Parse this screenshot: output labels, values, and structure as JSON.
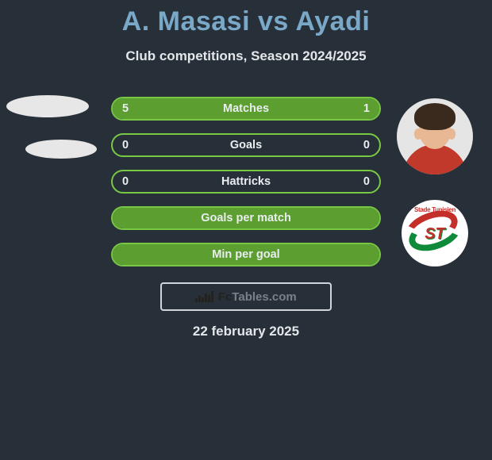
{
  "title_color": "#7aa8c8",
  "title": "A. Masasi vs Ayadi",
  "subtitle": "Club competitions, Season 2024/2025",
  "date": "22 february 2025",
  "brand": {
    "prefix": "Fc",
    "suffix": "Tables",
    "tld": ".com"
  },
  "background_color": "#273038",
  "border_color": "#79c845",
  "fill_color": "#5d9e31",
  "player_left": {
    "name": "A. Masasi"
  },
  "player_right": {
    "name": "Ayadi",
    "club_script": "Stade Tunisien",
    "club_initials": "ST"
  },
  "rows": [
    {
      "label": "Matches",
      "left_val": "5",
      "right_val": "1",
      "left_pct": 83,
      "right_pct": 17
    },
    {
      "label": "Goals",
      "left_val": "0",
      "right_val": "0",
      "left_pct": 0,
      "right_pct": 0
    },
    {
      "label": "Hattricks",
      "left_val": "0",
      "right_val": "0",
      "left_pct": 0,
      "right_pct": 0
    },
    {
      "label": "Goals per match",
      "left_val": "",
      "right_val": "",
      "left_pct": 100,
      "right_pct": 0
    },
    {
      "label": "Min per goal",
      "left_val": "",
      "right_val": "",
      "left_pct": 100,
      "right_pct": 0
    }
  ]
}
